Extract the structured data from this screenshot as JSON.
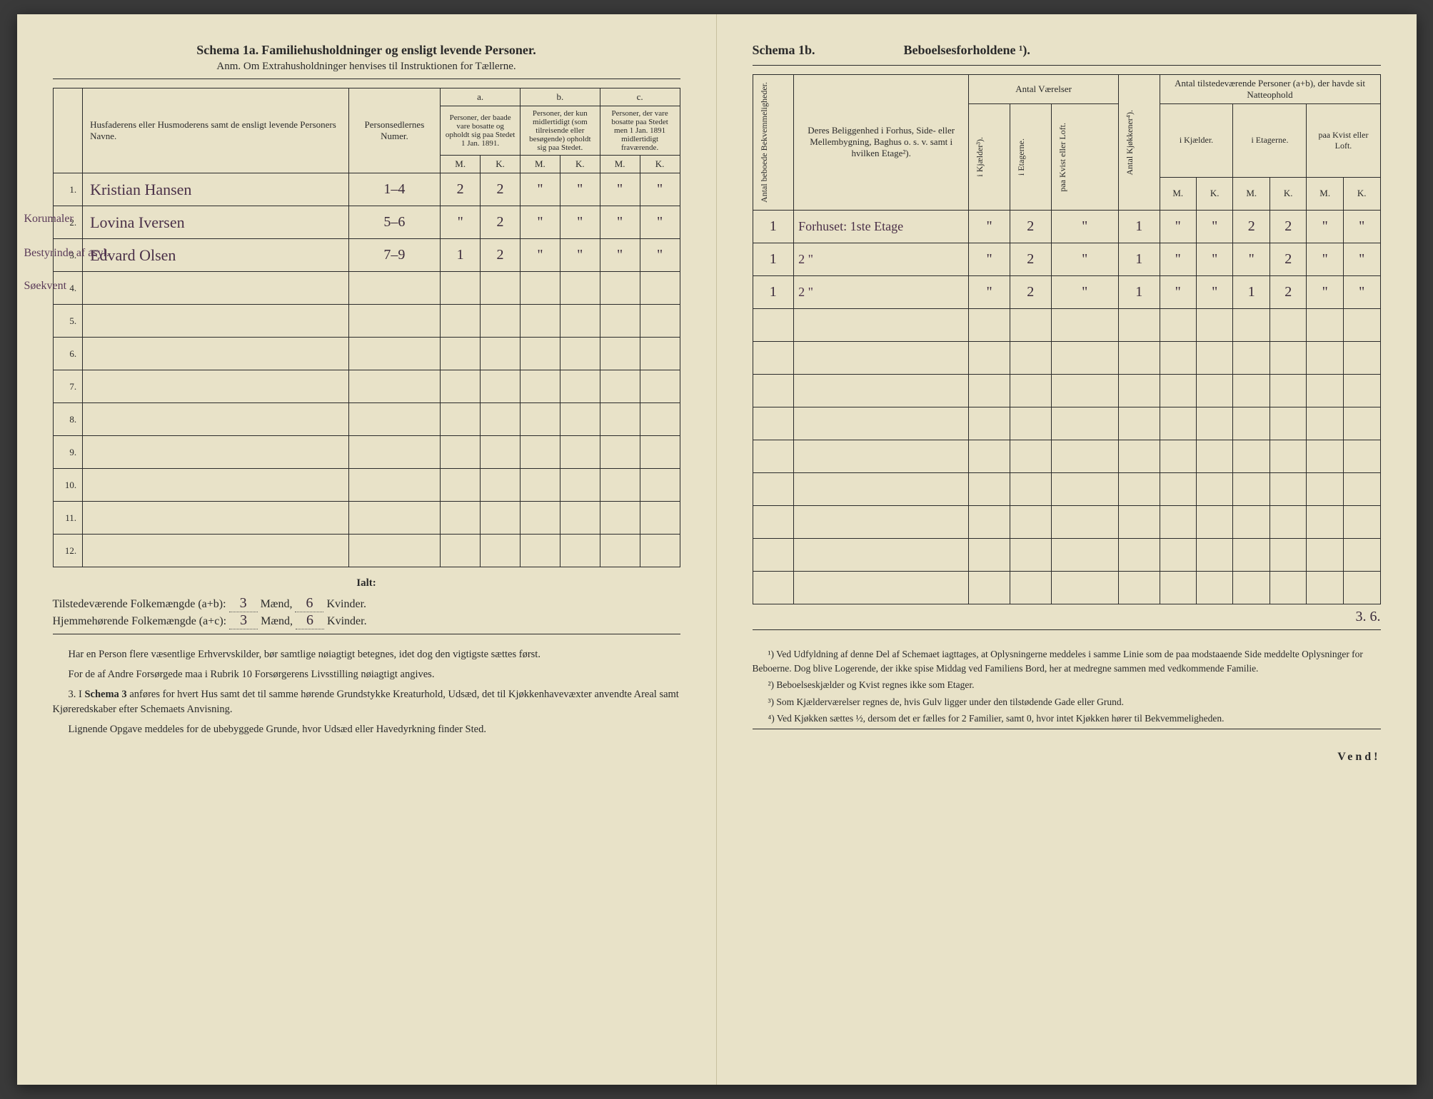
{
  "left": {
    "schema_label": "Schema 1a.",
    "schema_title": "Familiehusholdninger og ensligt levende Personer.",
    "anm": "Anm. Om Extrahusholdninger henvises til Instruktionen for Tællerne.",
    "col_name": "Husfaderens eller Husmoderens samt de ensligt levende Personers Navne.",
    "col_num": "Personsedlernes Numer.",
    "group_a": "a.",
    "group_b": "b.",
    "group_c": "c.",
    "col_a": "Personer, der baade vare bosatte og opholdt sig paa Stedet 1 Jan. 1891.",
    "col_b": "Personer, der kun midlertidigt (som tilreisende eller besøgende) opholdt sig paa Stedet.",
    "col_c": "Personer, der vare bosatte paa Stedet men 1 Jan. 1891 midlertidigt fraværende.",
    "mk_m": "M.",
    "mk_k": "K.",
    "rows": [
      {
        "n": "1.",
        "note": "Korumaler",
        "name": "Kristian Hansen",
        "num": "1–4",
        "am": "2",
        "ak": "2",
        "bm": "\"",
        "bk": "\"",
        "cm": "\"",
        "ck": "\""
      },
      {
        "n": "2.",
        "note": "Bestyrinde af asyl.",
        "name": "Lovina Iversen",
        "num": "5–6",
        "am": "\"",
        "ak": "2",
        "bm": "\"",
        "bk": "\"",
        "cm": "\"",
        "ck": "\""
      },
      {
        "n": "3.",
        "note": "Søekvent",
        "name": "Edvard Olsen",
        "num": "7–9",
        "am": "1",
        "ak": "2",
        "bm": "\"",
        "bk": "\"",
        "cm": "\"",
        "ck": "\""
      },
      {
        "n": "4."
      },
      {
        "n": "5."
      },
      {
        "n": "6."
      },
      {
        "n": "7."
      },
      {
        "n": "8."
      },
      {
        "n": "9."
      },
      {
        "n": "10."
      },
      {
        "n": "11."
      },
      {
        "n": "12."
      }
    ],
    "ialt": "Ialt:",
    "tot1_label": "Tilstedeværende Folkemængde (a+b):",
    "tot2_label": "Hjemmehørende Folkemængde (a+c):",
    "tot_m": "3",
    "tot_k": "6",
    "tot_m2": "3",
    "tot_k2": "6",
    "maend": "Mænd,",
    "kvinder": "Kvinder.",
    "para1": "Har en Person flere væsentlige Erhvervskilder, bør samtlige nøiagtigt betegnes, idet dog den vigtigste sættes først.",
    "para2": "For de af Andre Forsørgede maa i Rubrik 10 Forsørgerens Livsstilling nøiagtigt angives.",
    "para3_pre": "3. I ",
    "para3_bold": "Schema 3",
    "para3_rest": " anføres for hvert Hus samt det til samme hørende Grundstykke Kreaturhold, Udsæd, det til Kjøkkenhavevæxter anvendte Areal samt Kjøreredskaber efter Schemaets Anvisning.",
    "para4": "Lignende Opgave meddeles for de ubebyggede Grunde, hvor Udsæd eller Havedyrkning finder Sted."
  },
  "right": {
    "schema_label": "Schema 1b.",
    "schema_title": "Beboelsesforholdene ¹).",
    "col_bekv": "Antal beboede Bekvemmeligheder.",
    "col_belig": "Deres Beliggenhed i Forhus, Side- eller Mellembygning, Baghus o. s. v. samt i hvilken Etage²).",
    "grp_vaer": "Antal Værelser",
    "col_kjael": "i Kjælder³).",
    "col_etag": "i Etagerne.",
    "col_kvist": "paa Kvist eller Loft.",
    "col_kjokk": "Antal Kjøkkener⁴).",
    "grp_pers": "Antal tilstedeværende Personer (a+b), der havde sit Natteophold",
    "sub_kjael": "i Kjælder.",
    "sub_etag": "i Etagerne.",
    "sub_kvist": "paa Kvist eller Loft.",
    "mk_m": "M.",
    "mk_k": "K.",
    "rows": [
      {
        "bekv": "1",
        "belig": "Forhuset: 1ste Etage",
        "kj": "\"",
        "et": "2",
        "kv": "\"",
        "kk": "1",
        "km": "\"",
        "kk2": "\"",
        "em": "2",
        "ek": "2",
        "lm": "\"",
        "lk": "\""
      },
      {
        "bekv": "1",
        "belig": "2 \"",
        "kj": "\"",
        "et": "2",
        "kv": "\"",
        "kk": "1",
        "km": "\"",
        "kk2": "\"",
        "em": "\"",
        "ek": "2",
        "lm": "\"",
        "lk": "\""
      },
      {
        "bekv": "1",
        "belig": "2 \"",
        "kj": "\"",
        "et": "2",
        "kv": "\"",
        "kk": "1",
        "km": "\"",
        "kk2": "\"",
        "em": "1",
        "ek": "2",
        "lm": "\"",
        "lk": "\""
      }
    ],
    "bottom_tot": "3. 6.",
    "fn1": "¹) Ved Udfyldning af denne Del af Schemaet iagttages, at Oplysningerne meddeles i samme Linie som de paa modstaaende Side meddelte Oplysninger for Beboerne. Dog blive Logerende, der ikke spise Middag ved Familiens Bord, her at medregne sammen med vedkommende Familie.",
    "fn2": "²) Beboelseskjælder og Kvist regnes ikke som Etager.",
    "fn3": "³) Som Kjælderværelser regnes de, hvis Gulv ligger under den tilstødende Gade eller Grund.",
    "fn4": "⁴) Ved Kjøkken sættes ½, dersom det er fælles for 2 Familier, samt 0, hvor intet Kjøkken hører til Bekvemmeligheden.",
    "vend": "Vend!"
  }
}
